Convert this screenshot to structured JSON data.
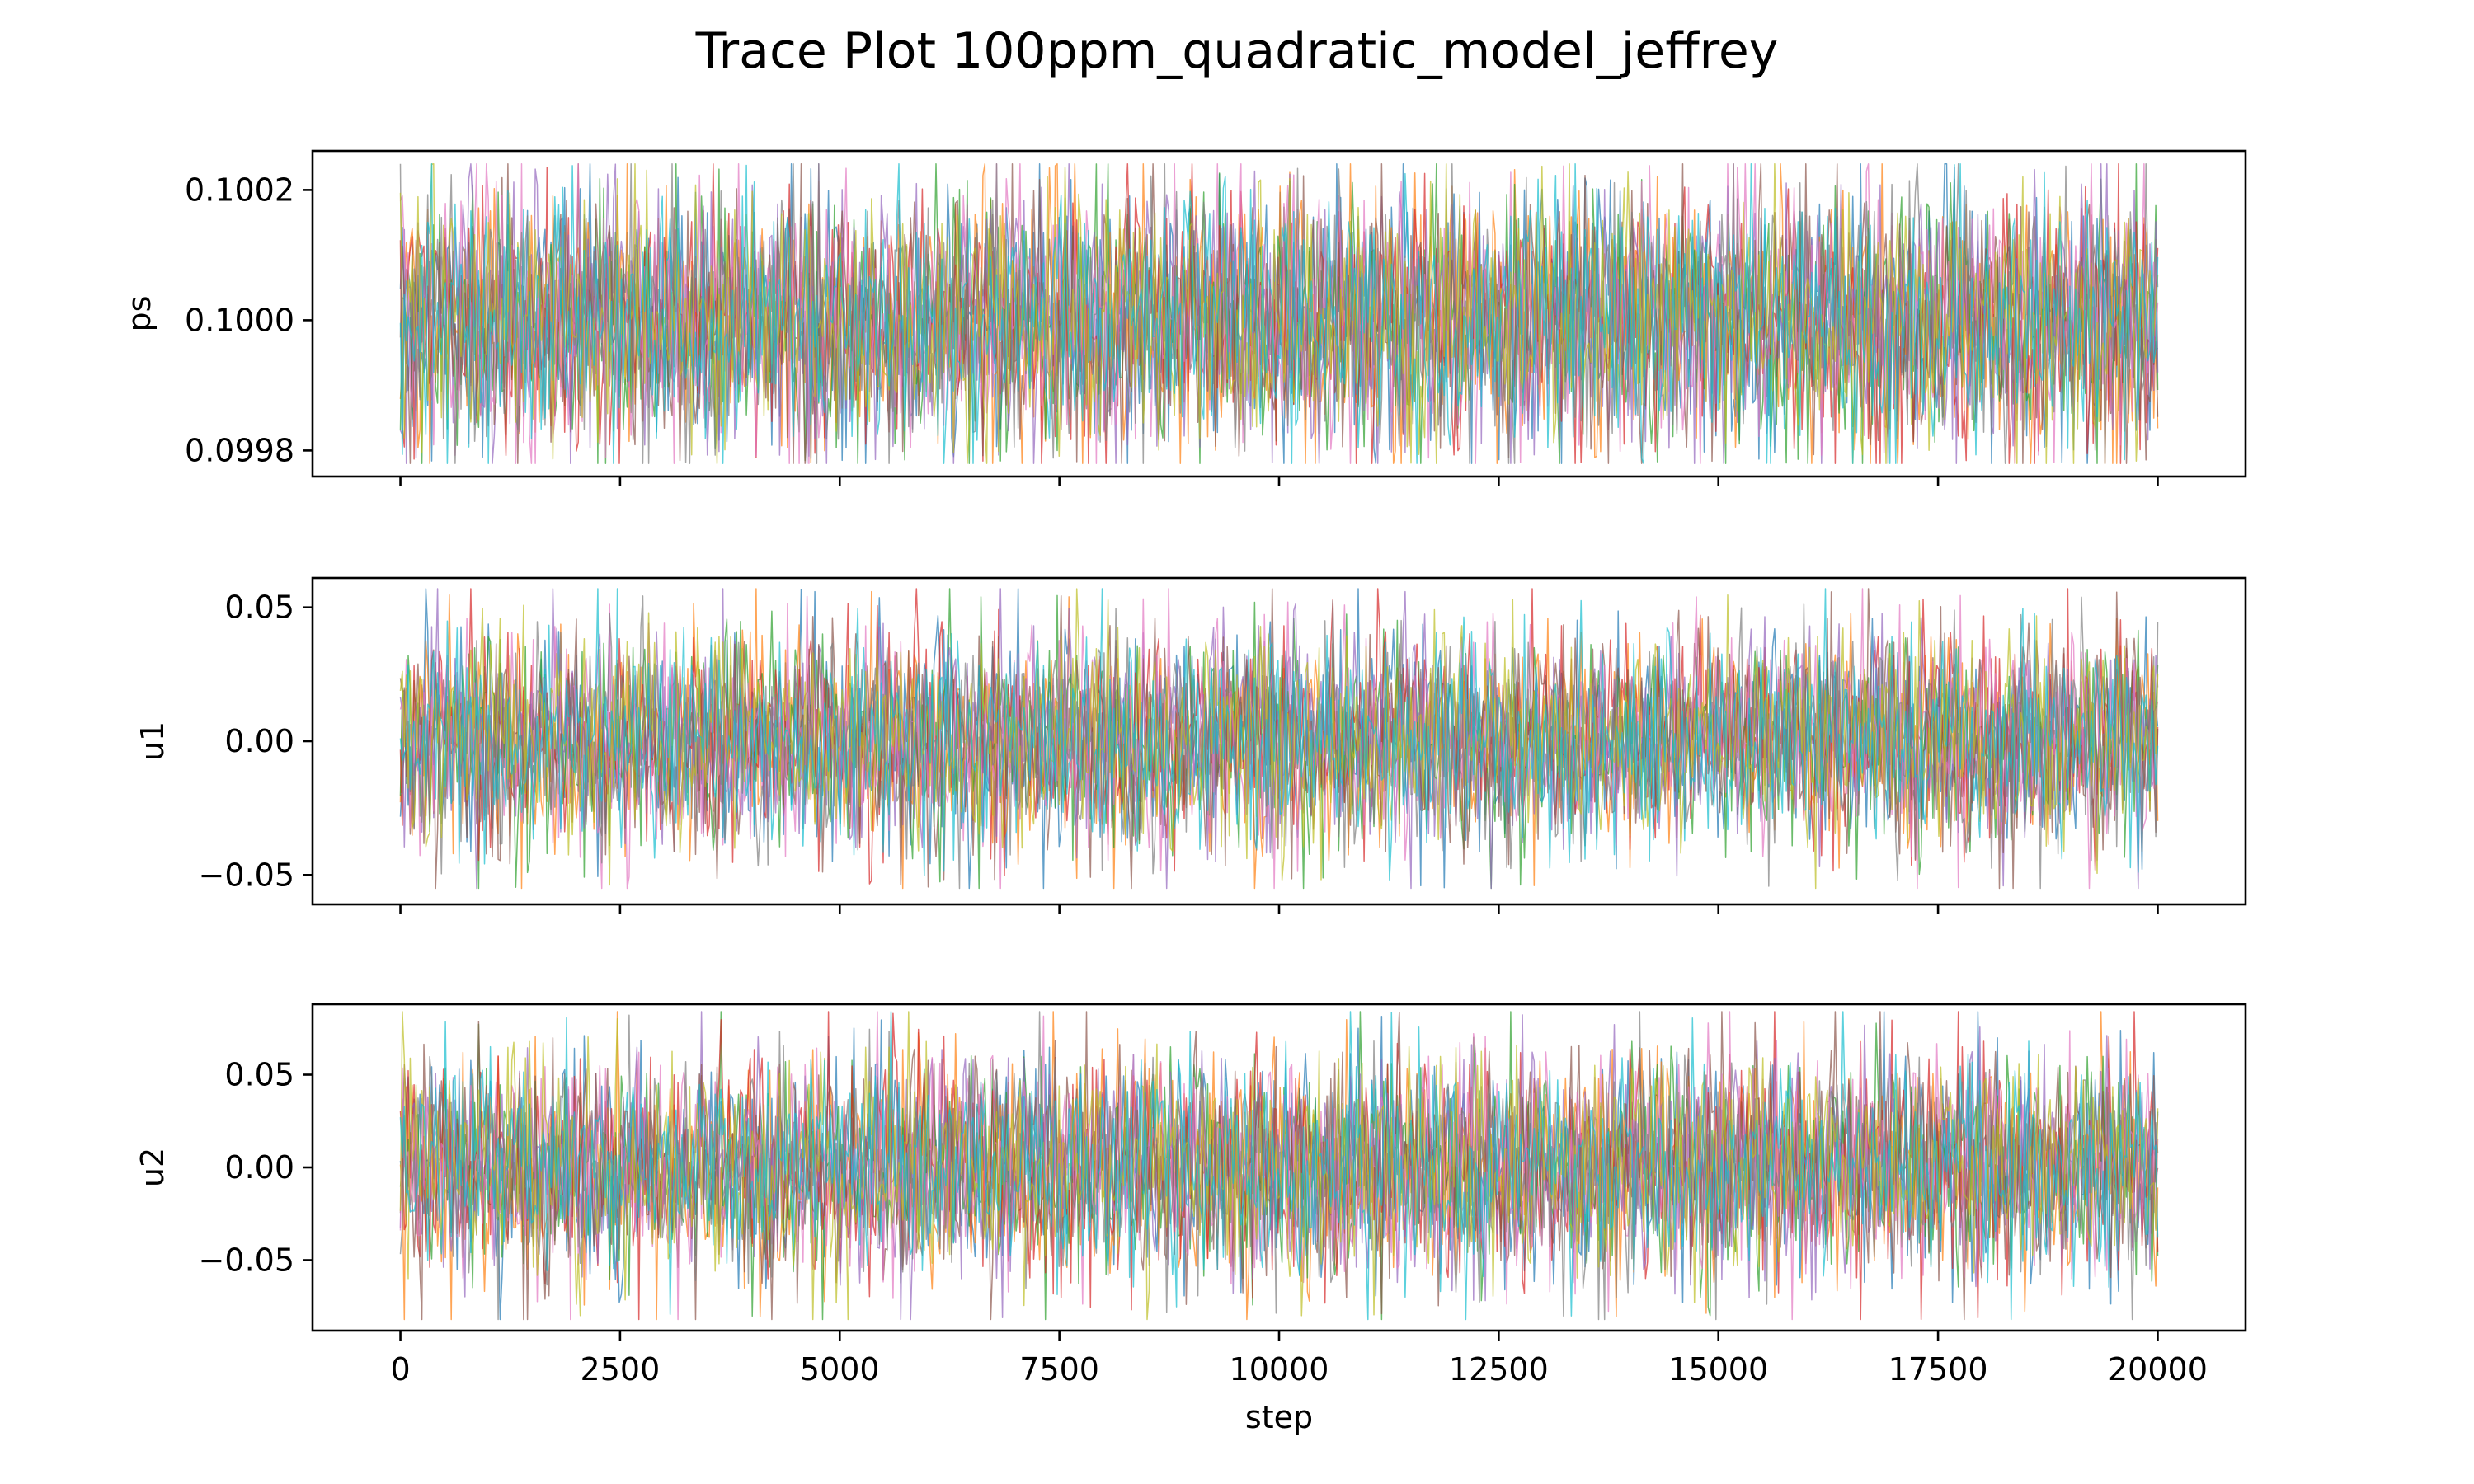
{
  "chart_data": {
    "type": "line",
    "title": "Trace Plot 100ppm_quadratic_model_jeffrey",
    "xlabel": "step",
    "xlim": [
      -1000,
      21000
    ],
    "x_ticks": [
      0,
      2500,
      5000,
      7500,
      10000,
      12500,
      15000,
      17500,
      20000
    ],
    "x_tick_labels": [
      "0",
      "2500",
      "5000",
      "7500",
      "10000",
      "12500",
      "15000",
      "17500",
      "20000"
    ],
    "series_colors": [
      "#1f77b4",
      "#ff7f0e",
      "#2ca02c",
      "#d62728",
      "#9467bd",
      "#8c564b",
      "#e377c2",
      "#7f7f7f",
      "#bcbd22",
      "#17becf"
    ],
    "legend": false,
    "grid": false,
    "shared_x": true,
    "panels": [
      {
        "ylabel": "ps",
        "ylim": [
          0.09976,
          0.10026
        ],
        "y_ticks": [
          0.0998,
          0.1,
          0.1002
        ],
        "y_tick_labels": [
          "0.0998",
          "0.1000",
          "0.1002"
        ],
        "x_range": [
          0,
          20000
        ],
        "center": 0.1,
        "spread": 0.0001,
        "max": 0.10024,
        "min": 0.09978
      },
      {
        "ylabel": "u1",
        "ylim": [
          -0.061,
          0.061
        ],
        "y_ticks": [
          -0.05,
          0.0,
          0.05
        ],
        "y_tick_labels": [
          "−0.05",
          "0.00",
          "0.05"
        ],
        "x_range": [
          0,
          20000
        ],
        "center": 0.0,
        "spread": 0.02,
        "max": 0.057,
        "min": -0.055
      },
      {
        "ylabel": "u2",
        "ylim": [
          -0.088,
          0.088
        ],
        "y_ticks": [
          -0.05,
          0.0,
          0.05
        ],
        "y_tick_labels": [
          "−0.05",
          "0.00",
          "0.05"
        ],
        "x_range": [
          0,
          20000
        ],
        "center": 0.0,
        "spread": 0.03,
        "max": 0.084,
        "min": -0.082
      }
    ]
  }
}
